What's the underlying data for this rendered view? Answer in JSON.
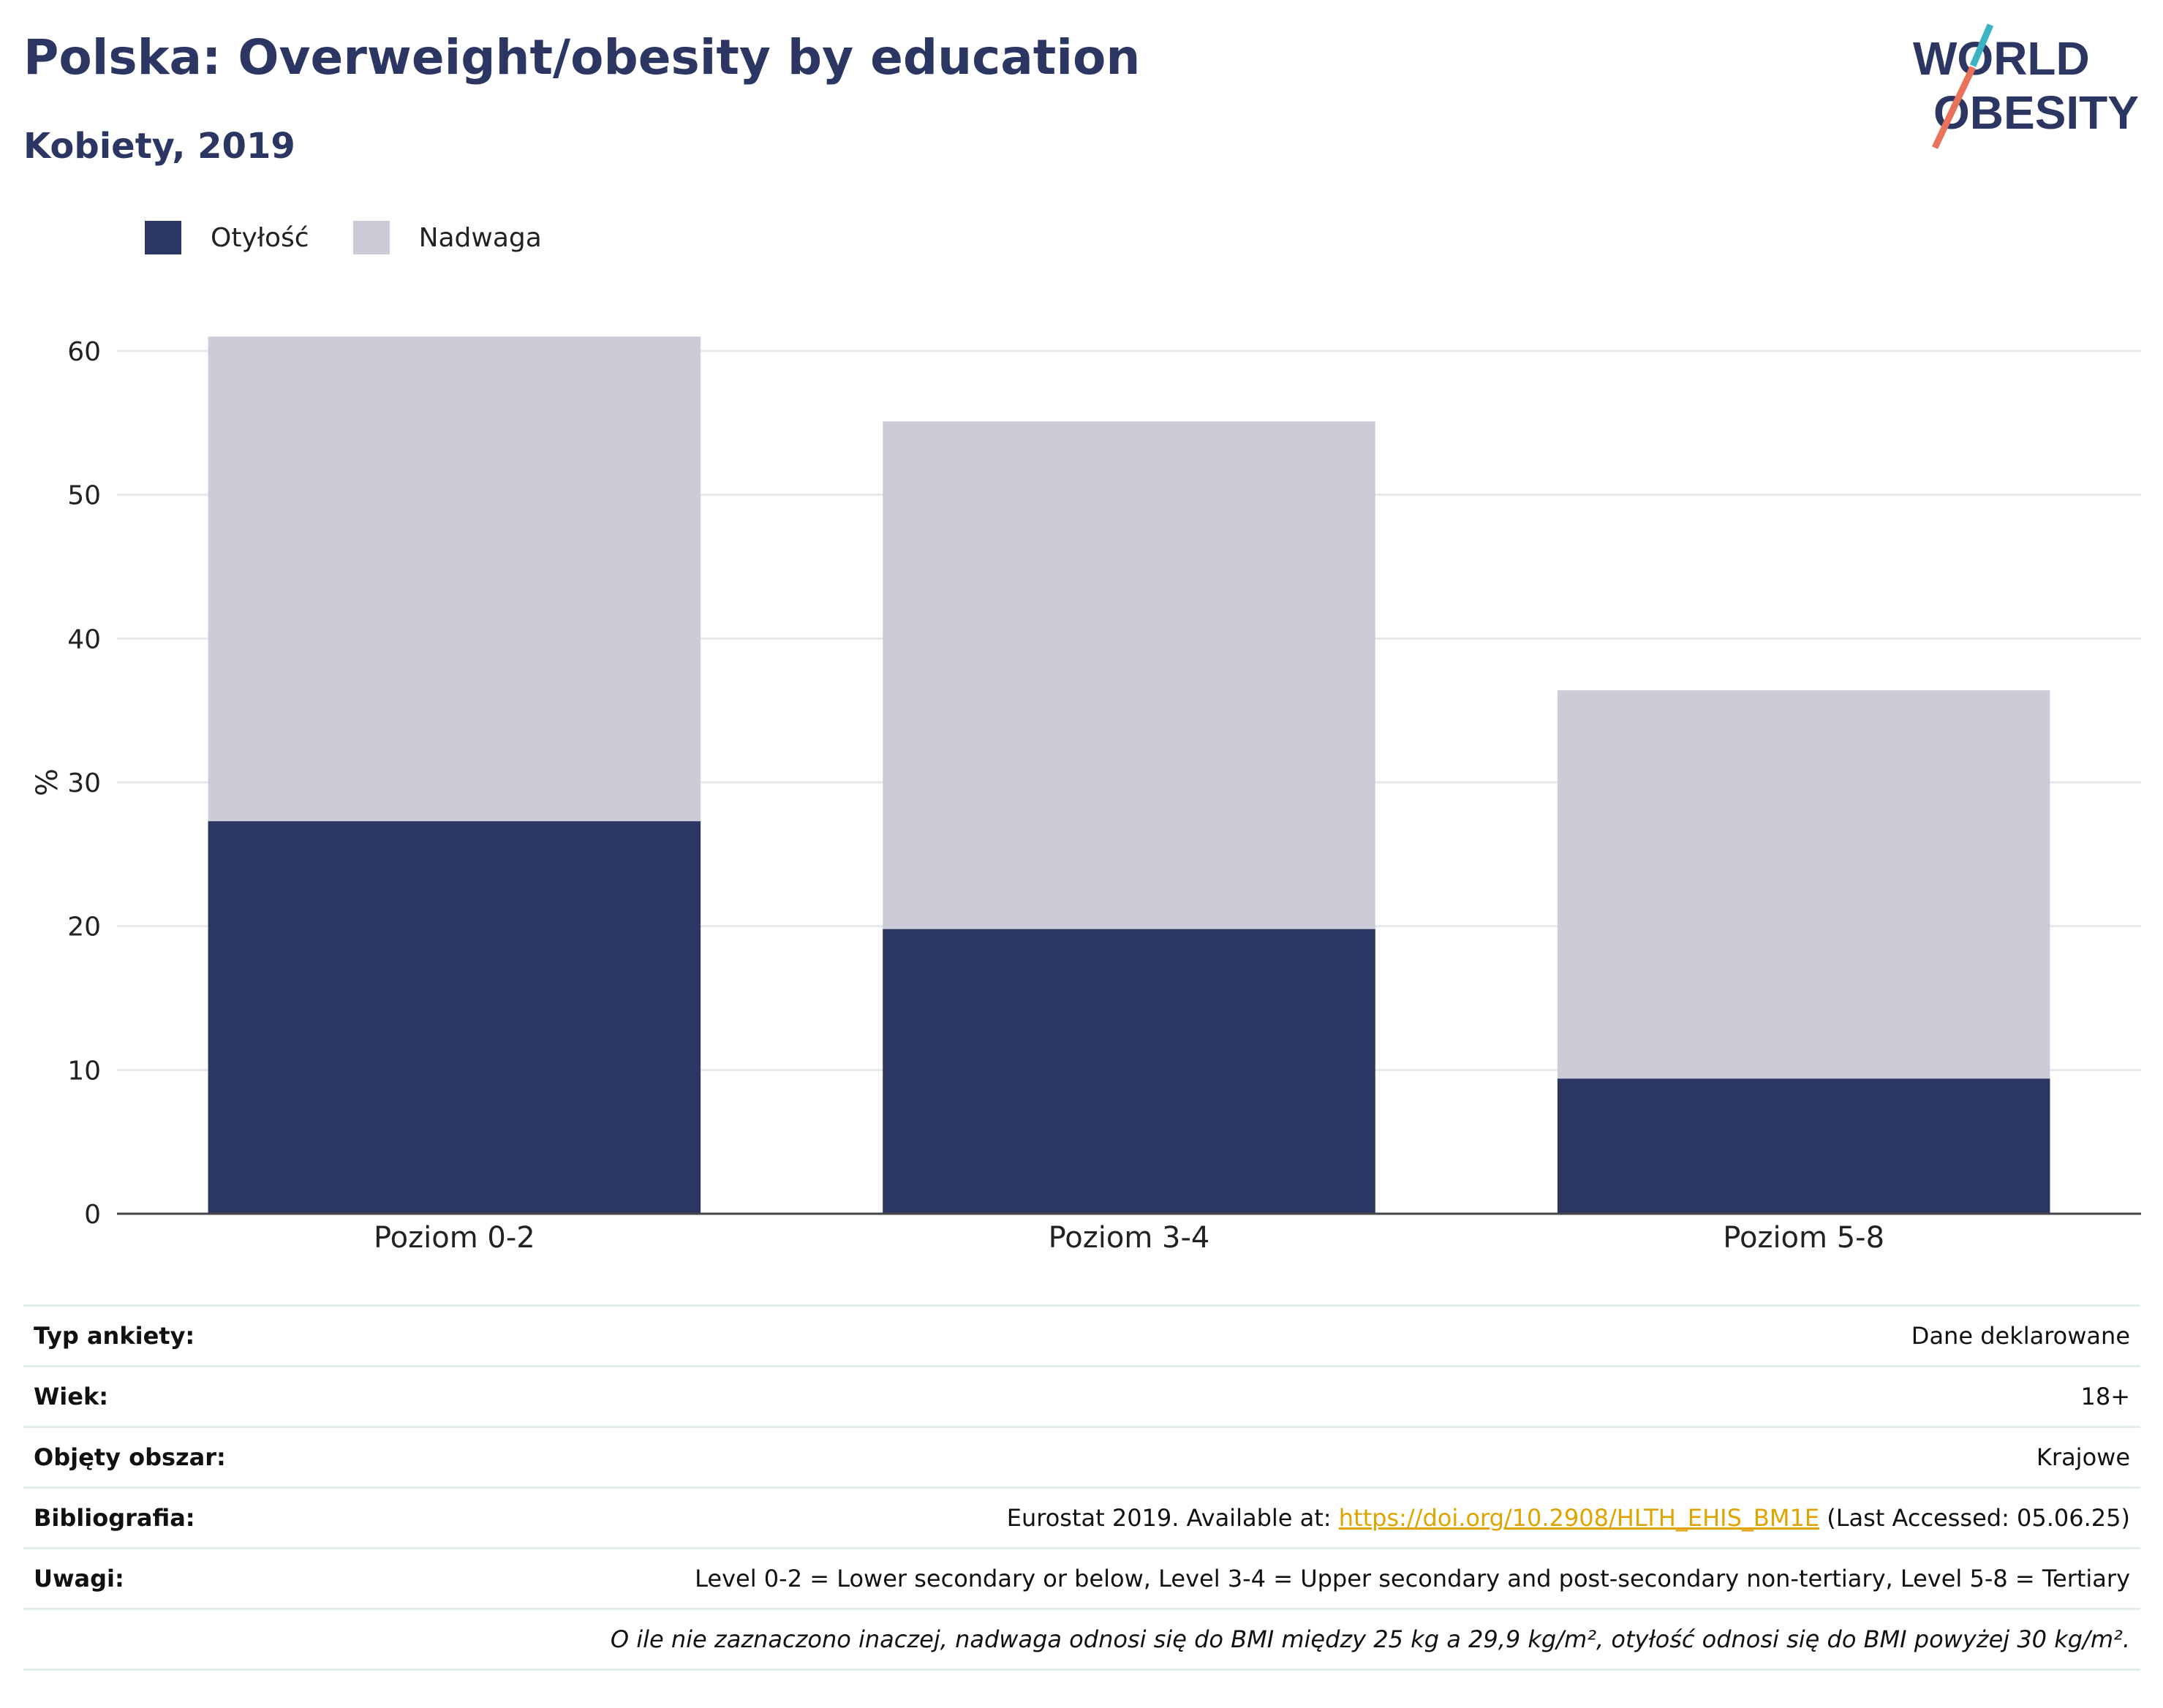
{
  "header": {
    "title": "Polska: Overweight/obesity by education",
    "subtitle": "Kobiety, 2019"
  },
  "logo": {
    "line1": "WORLD",
    "line2": "OBESITY"
  },
  "colors": {
    "obesity": "#2b3663",
    "overweight": "#cbccd8",
    "accent_link": "#e0a400",
    "logo_teal": "#3bb3c3",
    "logo_coral": "#e8735a"
  },
  "chart_data": {
    "type": "bar",
    "stacked": true,
    "categories": [
      "Poziom 0-2",
      "Poziom 3-4",
      "Poziom 5-8"
    ],
    "series": [
      {
        "name": "Otyłość",
        "values": [
          27.3,
          19.8,
          9.4
        ]
      },
      {
        "name": "Nadwaga",
        "values": [
          33.7,
          35.3,
          27.0
        ]
      }
    ],
    "ylabel": "%",
    "ylim": [
      0,
      60
    ],
    "yticks": [
      0,
      10,
      20,
      30,
      40,
      50,
      60
    ],
    "grid": true,
    "legend_position": "top-left"
  },
  "meta": {
    "survey_type": {
      "label": "Typ ankiety:",
      "value": "Dane deklarowane"
    },
    "age": {
      "label": "Wiek:",
      "value": "18+"
    },
    "area": {
      "label": "Objęty obszar:",
      "value": "Krajowe"
    },
    "bibliography": {
      "label": "Bibliografia:",
      "prefix": "Eurostat 2019. Available at: ",
      "link": "https://doi.org/10.2908/HLTH_EHIS_BM1E",
      "suffix": " (Last Accessed: 05.06.25)"
    },
    "notes": {
      "label": "Uwagi:",
      "value": "Level 0-2 = Lower secondary or below, Level 3-4 = Upper secondary and post-secondary non-tertiary, Level 5-8 = Tertiary"
    },
    "footnote": "O ile nie zaznaczono inaczej, nadwaga odnosi się do BMI między 25 kg a 29,9 kg/m², otyłość odnosi się do BMI powyżej 30 kg/m²."
  }
}
